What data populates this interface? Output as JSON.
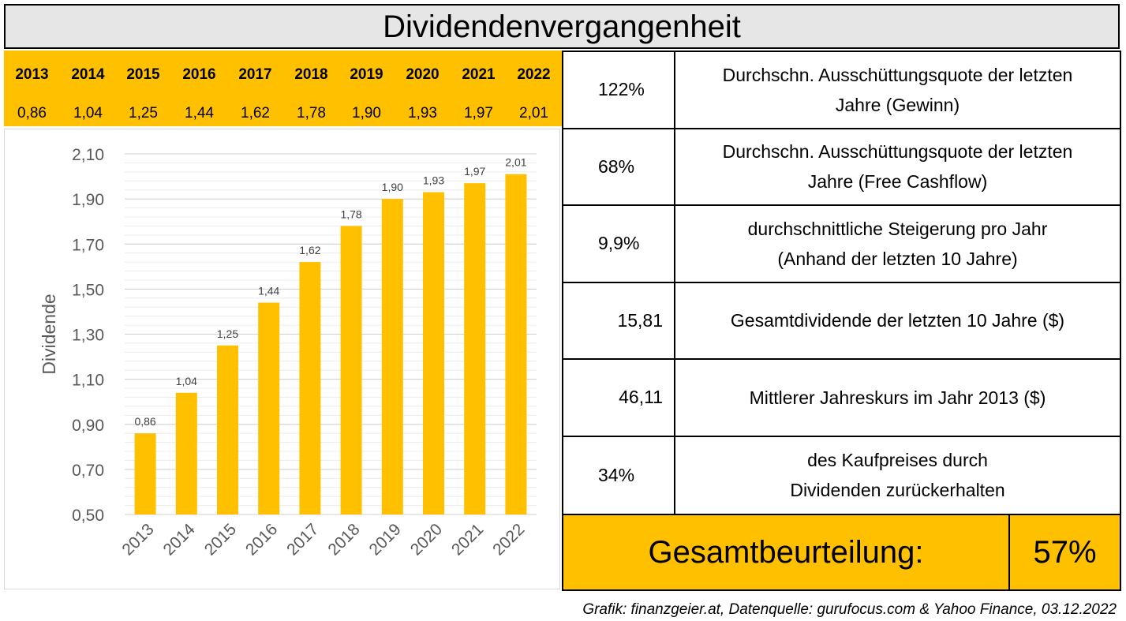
{
  "title": "Dividendenvergangenheit",
  "accent_color": "#ffc000",
  "years_row": [
    "2013",
    "2014",
    "2015",
    "2016",
    "2017",
    "2018",
    "2019",
    "2020",
    "2021",
    "2022"
  ],
  "values_row": [
    "0,86",
    "1,04",
    "1,25",
    "1,44",
    "1,62",
    "1,78",
    "1,90",
    "1,93",
    "1,97",
    "2,01"
  ],
  "chart_data": {
    "type": "bar",
    "categories": [
      "2013",
      "2014",
      "2015",
      "2016",
      "2017",
      "2018",
      "2019",
      "2020",
      "2021",
      "2022"
    ],
    "values": [
      0.86,
      1.04,
      1.25,
      1.44,
      1.62,
      1.78,
      1.9,
      1.93,
      1.97,
      2.01
    ],
    "value_labels": [
      "0,86",
      "1,04",
      "1,25",
      "1,44",
      "1,62",
      "1,78",
      "1,90",
      "1,93",
      "1,97",
      "2,01"
    ],
    "ylabel": "Dividende",
    "ylim": [
      0.5,
      2.1
    ],
    "yticks": [
      "2,10",
      "1,90",
      "1,70",
      "1,50",
      "1,30",
      "1,10",
      "0,90",
      "0,70",
      "0,50"
    ],
    "bar_color": "#ffc000",
    "grid": true
  },
  "stats": [
    {
      "value": "122%",
      "desc_1": "Durchschn. Ausschüttungsquote der letzten",
      "desc_2": "Jahre (Gewinn)"
    },
    {
      "value": "68%",
      "desc_1": "Durchschn. Ausschüttungsquote der letzten",
      "desc_2": "Jahre (Free Cashflow)"
    },
    {
      "value": "9,9%",
      "desc_1": "durchschnittliche Steigerung pro Jahr",
      "desc_2": "(Anhand der letzten 10 Jahre)"
    },
    {
      "value": "15,81",
      "desc_1": "Gesamtdividende der letzten 10 Jahre ($)",
      "desc_2": ""
    },
    {
      "value": "46,11",
      "desc_1": "Mittlerer Jahreskurs im Jahr 2013 ($)",
      "desc_2": ""
    },
    {
      "value": "34%",
      "desc_1": "des Kaufpreises durch",
      "desc_2": "Dividenden zurückerhalten"
    }
  ],
  "verdict": {
    "label": "Gesamtbeurteilung:",
    "score": "57%"
  },
  "source": "Grafik: finanzgeier.at, Datenquelle: gurufocus.com & Yahoo Finance, 03.12.2022"
}
